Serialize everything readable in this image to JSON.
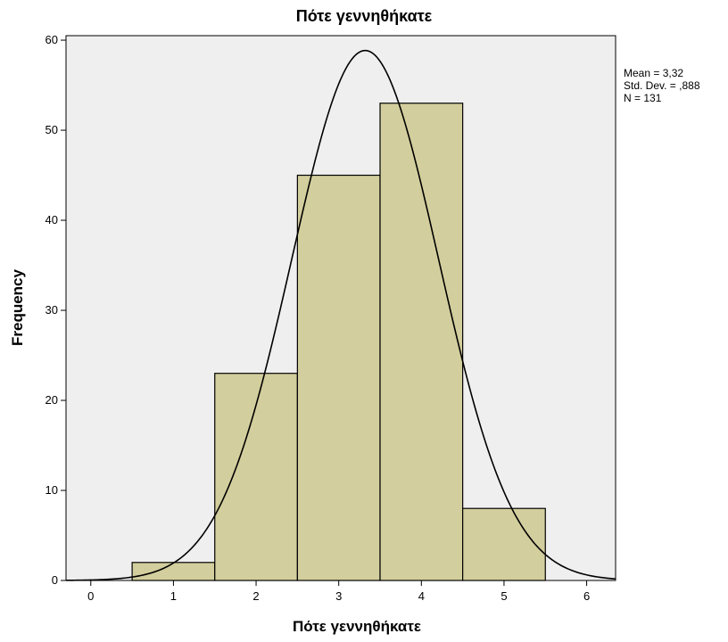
{
  "chart_data": {
    "type": "bar",
    "title": "Πότε γεννηθήκατε",
    "xlabel": "Πότε γεννηθήκατε",
    "ylabel": "Frequency",
    "categories": [
      "1",
      "2",
      "3",
      "4",
      "5"
    ],
    "values": [
      2,
      23,
      45,
      53,
      8
    ],
    "bins": [
      {
        "x_start": 0.5,
        "x_end": 1.5,
        "value": 2
      },
      {
        "x_start": 1.5,
        "x_end": 2.5,
        "value": 23
      },
      {
        "x_start": 2.5,
        "x_end": 3.5,
        "value": 45
      },
      {
        "x_start": 3.5,
        "x_end": 4.5,
        "value": 53
      },
      {
        "x_start": 4.5,
        "x_end": 5.5,
        "value": 8
      }
    ],
    "xlim": [
      -0.3,
      6.35
    ],
    "ylim": [
      0,
      60.5
    ],
    "xticks": [
      "0",
      "1",
      "2",
      "3",
      "4",
      "5",
      "6"
    ],
    "yticks": [
      "0",
      "10",
      "20",
      "30",
      "40",
      "50",
      "60"
    ],
    "normal_curve": {
      "mean": 3.32,
      "std_dev": 0.888,
      "n": 131,
      "bin_width": 1
    },
    "stats": [
      "Mean = 3,32",
      "Std. Dev. = ,888",
      "N = 131"
    ],
    "grid": false,
    "legend": "none",
    "colors": {
      "plot_background": "#efefef",
      "bar_fill": "#d3ce9d",
      "bar_stroke": "#000000",
      "curve": "#000000"
    }
  }
}
